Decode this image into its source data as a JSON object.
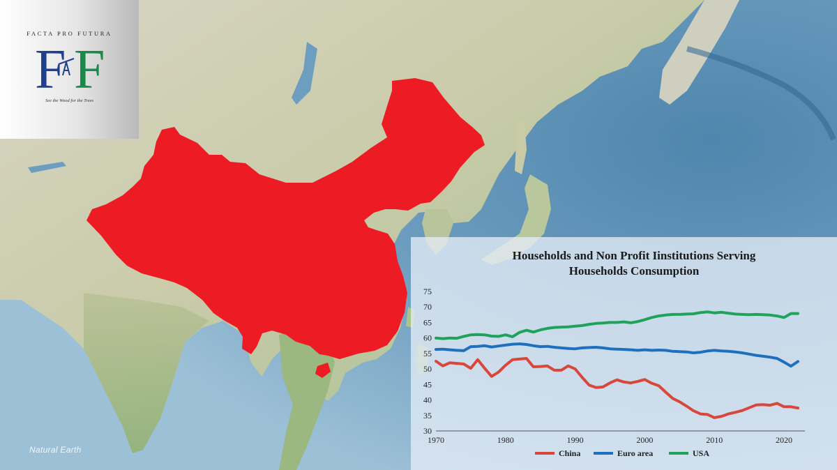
{
  "logo": {
    "top_text": "FACTA PRO FUTURA",
    "letters": "FF",
    "tagline": "See the Wood for the Trees",
    "colors": {
      "left_f": "#1f3f8f",
      "right_f": "#1a8a4a"
    }
  },
  "map": {
    "credit": "Natural Earth",
    "highlight_country": "China",
    "highlight_color": "#ed1c24"
  },
  "chart_data": {
    "type": "line",
    "title": [
      "Households and Non Profit Iinstitutions Serving",
      "Households Consumption"
    ],
    "xlabel": "",
    "ylabel": "",
    "xlim": [
      1970,
      2023
    ],
    "ylim": [
      30,
      75
    ],
    "x_ticks": [
      1970,
      1980,
      1990,
      2000,
      2010,
      2020
    ],
    "y_ticks": [
      30,
      35,
      40,
      45,
      50,
      55,
      60,
      65,
      70,
      75
    ],
    "grid": false,
    "legend": "bottom",
    "x": [
      1970,
      1971,
      1972,
      1973,
      1974,
      1975,
      1976,
      1977,
      1978,
      1979,
      1980,
      1981,
      1982,
      1983,
      1984,
      1985,
      1986,
      1987,
      1988,
      1989,
      1990,
      1991,
      1992,
      1993,
      1994,
      1995,
      1996,
      1997,
      1998,
      1999,
      2000,
      2001,
      2002,
      2003,
      2004,
      2005,
      2006,
      2007,
      2008,
      2009,
      2010,
      2011,
      2012,
      2013,
      2014,
      2015,
      2016,
      2017,
      2018,
      2019,
      2020,
      2021,
      2022
    ],
    "series": [
      {
        "name": "China",
        "color": "#d9473b",
        "values": [
          52.5,
          51.0,
          52.0,
          51.8,
          51.6,
          50.2,
          53.0,
          50.2,
          47.6,
          49.0,
          51.2,
          53.0,
          53.2,
          53.4,
          50.7,
          50.8,
          51.0,
          49.6,
          49.6,
          51.0,
          50.0,
          47.3,
          44.8,
          44.0,
          44.2,
          45.5,
          46.5,
          45.8,
          45.5,
          46.0,
          46.6,
          45.4,
          44.6,
          42.5,
          40.5,
          39.4,
          38.0,
          36.5,
          35.5,
          35.3,
          34.3,
          34.7,
          35.5,
          36.0,
          36.6,
          37.5,
          38.4,
          38.5,
          38.3,
          38.9,
          37.8,
          37.8,
          37.4
        ]
      },
      {
        "name": "Euro area",
        "color": "#1f6fbf",
        "values": [
          56.3,
          56.4,
          56.2,
          56.0,
          55.9,
          57.2,
          57.3,
          57.5,
          57.1,
          57.4,
          57.7,
          58.0,
          58.1,
          57.9,
          57.5,
          57.2,
          57.3,
          57.0,
          56.8,
          56.6,
          56.5,
          56.8,
          56.9,
          57.0,
          56.8,
          56.5,
          56.4,
          56.3,
          56.2,
          56.0,
          56.2,
          56.0,
          56.1,
          56.0,
          55.7,
          55.6,
          55.5,
          55.2,
          55.4,
          55.8,
          56.0,
          55.8,
          55.7,
          55.5,
          55.2,
          54.8,
          54.4,
          54.1,
          53.8,
          53.4,
          52.2,
          50.9,
          52.4
        ]
      },
      {
        "name": "USA",
        "color": "#1fa35a",
        "values": [
          60.0,
          59.8,
          60.0,
          59.9,
          60.5,
          61.0,
          61.1,
          61.0,
          60.6,
          60.5,
          61.0,
          60.4,
          61.8,
          62.5,
          61.9,
          62.6,
          63.1,
          63.4,
          63.5,
          63.6,
          63.8,
          64.0,
          64.4,
          64.7,
          64.8,
          65.0,
          65.0,
          65.2,
          64.9,
          65.3,
          65.9,
          66.6,
          67.1,
          67.4,
          67.6,
          67.6,
          67.7,
          67.8,
          68.2,
          68.4,
          68.1,
          68.3,
          68.0,
          67.7,
          67.6,
          67.5,
          67.6,
          67.5,
          67.4,
          67.1,
          66.6,
          67.9,
          67.9
        ]
      }
    ]
  }
}
